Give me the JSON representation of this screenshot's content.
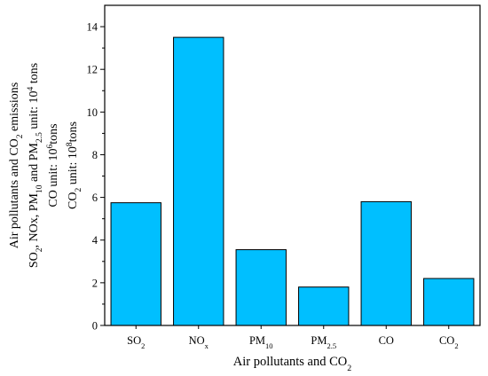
{
  "chart_data": {
    "type": "bar",
    "title": "",
    "xlabel": "Air pollutants and CO2",
    "xlabel_parts": [
      {
        "t": "Air pollutants and CO"
      },
      {
        "t": "2",
        "s": "sub"
      }
    ],
    "ylabel_lines": [
      [
        {
          "t": "Air pollutants and CO"
        },
        {
          "t": "2",
          "s": "sub"
        },
        {
          "t": " emissions"
        }
      ],
      [
        {
          "t": "SO"
        },
        {
          "t": "2",
          "s": "sub"
        },
        {
          "t": ", NOx, PM"
        },
        {
          "t": "10",
          "s": "sub"
        },
        {
          "t": " and PM"
        },
        {
          "t": "2.5",
          "s": "sub"
        },
        {
          "t": "  unit: 10"
        },
        {
          "t": "4",
          "s": "sup"
        },
        {
          "t": " tons"
        }
      ],
      [
        {
          "t": "CO unit: 10"
        },
        {
          "t": "6",
          "s": "sup"
        },
        {
          "t": "tons"
        }
      ],
      [
        {
          "t": "CO"
        },
        {
          "t": "2",
          "s": "sub"
        },
        {
          "t": " unit: 10"
        },
        {
          "t": "8",
          "s": "sup"
        },
        {
          "t": "tons"
        }
      ]
    ],
    "categories": [
      "SO2",
      "NOx",
      "PM10",
      "PM2.5",
      "CO",
      "CO2"
    ],
    "category_labels": [
      [
        {
          "t": "SO"
        },
        {
          "t": "2",
          "s": "sub"
        }
      ],
      [
        {
          "t": "NO"
        },
        {
          "t": "x",
          "s": "sub"
        }
      ],
      [
        {
          "t": "PM"
        },
        {
          "t": "10",
          "s": "sub"
        }
      ],
      [
        {
          "t": "PM"
        },
        {
          "t": "2.5",
          "s": "sub"
        }
      ],
      [
        {
          "t": "CO"
        }
      ],
      [
        {
          "t": "CO"
        },
        {
          "t": "2",
          "s": "sub"
        }
      ]
    ],
    "values": [
      5.75,
      13.5,
      3.55,
      1.8,
      5.8,
      2.2
    ],
    "ylim": [
      0,
      15
    ],
    "yticks": [
      0,
      2,
      4,
      6,
      8,
      10,
      12,
      14
    ],
    "bar_color": "#00BFFF",
    "edge_color": "#000000",
    "grid": false,
    "legend": "none"
  }
}
